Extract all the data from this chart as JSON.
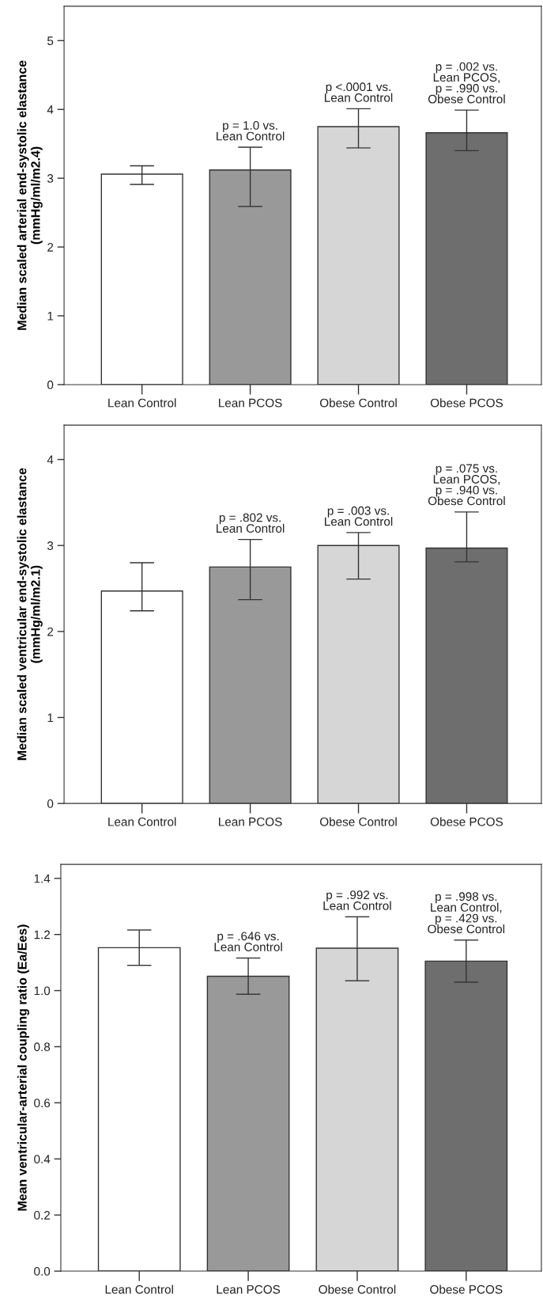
{
  "chart_data": [
    {
      "type": "bar",
      "ylabel": "Median scaled arterial end-systolic elastance\n(mmHg/ml/m2.4)",
      "categories": [
        "Lean Control",
        "Lean PCOS",
        "Obese Control",
        "Obese PCOS"
      ],
      "values": [
        3.06,
        3.12,
        3.75,
        3.66
      ],
      "errors": [
        [
          2.91,
          3.18
        ],
        [
          2.59,
          3.45
        ],
        [
          3.44,
          4.01
        ],
        [
          3.4,
          3.99
        ]
      ],
      "colors": [
        "#ffffff",
        "#999999",
        "#d6d6d6",
        "#6e6e6e"
      ],
      "ylim": [
        0,
        5.5
      ],
      "yticks": [
        0,
        1,
        2,
        3,
        4,
        5
      ],
      "grid": false,
      "legend": false,
      "annotations": [
        {
          "text": "p = 1.0 vs.\nLean Control",
          "x": "Lean PCOS",
          "y": 3.45
        },
        {
          "text": "p <.0001 vs.\nLean Control",
          "x": "Obese Control",
          "y": 4.01
        },
        {
          "text": "p = .002 vs.\nLean PCOS,\np = .990 vs.\nObese Control",
          "x": "Obese PCOS",
          "y": 3.99
        }
      ]
    },
    {
      "type": "bar",
      "ylabel": "Median scaled ventricular end-systolic elastance\n(mmHg/ml/m2.1)",
      "categories": [
        "Lean Control",
        "Lean PCOS",
        "Obese Control",
        "Obese PCOS"
      ],
      "values": [
        2.47,
        2.75,
        3.0,
        2.97
      ],
      "errors": [
        [
          2.24,
          2.8
        ],
        [
          2.37,
          3.07
        ],
        [
          2.61,
          3.15
        ],
        [
          2.81,
          3.39
        ]
      ],
      "colors": [
        "#ffffff",
        "#999999",
        "#d6d6d6",
        "#6e6e6e"
      ],
      "ylim": [
        0,
        4.4
      ],
      "yticks": [
        0,
        1,
        2,
        3,
        4
      ],
      "grid": false,
      "legend": false,
      "annotations": [
        {
          "text": "p = .802 vs.\nLean Control",
          "x": "Lean PCOS",
          "y": 3.07
        },
        {
          "text": "p = .003 vs.\nLean Control",
          "x": "Obese Control",
          "y": 3.15
        },
        {
          "text": "p = .075 vs.\nLean PCOS,\np = .940 vs.\nObese Control",
          "x": "Obese PCOS",
          "y": 3.39
        }
      ]
    },
    {
      "type": "bar",
      "ylabel": "Mean ventricular-arterial coupling ratio (Ea/Ees)",
      "categories": [
        "Lean Control",
        "Lean PCOS",
        "Obese Control",
        "Obese PCOS"
      ],
      "values": [
        1.153,
        1.051,
        1.151,
        1.105
      ],
      "errors": [
        [
          1.09,
          1.216
        ],
        [
          0.987,
          1.116
        ],
        [
          1.035,
          1.263
        ],
        [
          1.03,
          1.18
        ]
      ],
      "colors": [
        "#ffffff",
        "#999999",
        "#d6d6d6",
        "#6e6e6e"
      ],
      "ylim": [
        0,
        1.45
      ],
      "yticks": [
        {
          "value": 0,
          "label": "0.0"
        },
        0.2,
        0.4,
        0.6,
        0.8,
        {
          "value": 1,
          "label": "1.0"
        },
        1.2,
        1.4
      ],
      "grid": false,
      "legend": false,
      "annotations": [
        {
          "text": "p = .646 vs.\nLean Control",
          "x": "Lean PCOS",
          "y": 1.116
        },
        {
          "text": "p = .992 vs.\nLean Control",
          "x": "Obese Control",
          "y": 1.263
        },
        {
          "text": "p = .998 vs.\nLean Control,\np = .429 vs.\nObese Control",
          "x": "Obese PCOS",
          "y": 1.18
        }
      ]
    }
  ]
}
